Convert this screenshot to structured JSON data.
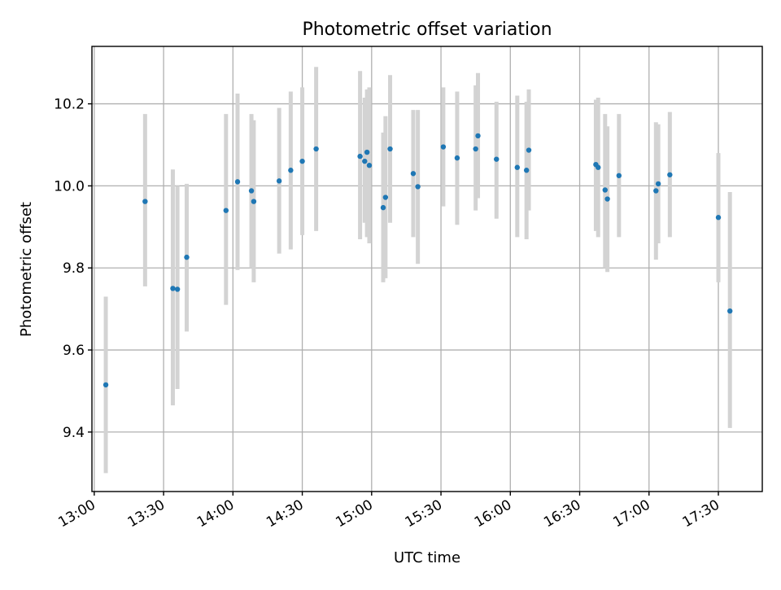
{
  "chart_data": {
    "type": "scatter",
    "title": "Photometric offset variation",
    "xlabel": "UTC time",
    "ylabel": "Photometric offset",
    "x_ticks": [
      "13:00",
      "13:30",
      "14:00",
      "14:30",
      "15:00",
      "15:30",
      "16:00",
      "16:30",
      "17:00",
      "17:30"
    ],
    "y_ticks": [
      "9.4",
      "9.6",
      "9.8",
      "10.0",
      "10.2"
    ],
    "y_tick_values": [
      9.4,
      9.6,
      9.8,
      10.0,
      10.2
    ],
    "xlim": [
      "12:59",
      "17:49"
    ],
    "ylim": [
      9.255,
      10.34
    ],
    "grid": true,
    "colors": {
      "point": "#1f77b4",
      "errorbar": "#d3d3d3"
    },
    "series": [
      {
        "points": [
          {
            "x": "13:05",
            "y": 9.515,
            "lo": 9.3,
            "hi": 9.73
          },
          {
            "x": "13:22",
            "y": 9.962,
            "lo": 9.755,
            "hi": 10.175
          },
          {
            "x": "13:34",
            "y": 9.75,
            "lo": 9.465,
            "hi": 10.04
          },
          {
            "x": "13:36",
            "y": 9.748,
            "lo": 9.505,
            "hi": 10.0
          },
          {
            "x": "13:40",
            "y": 9.826,
            "lo": 9.645,
            "hi": 10.005
          },
          {
            "x": "13:57",
            "y": 9.94,
            "lo": 9.71,
            "hi": 10.175
          },
          {
            "x": "14:02",
            "y": 10.01,
            "lo": 9.795,
            "hi": 10.225
          },
          {
            "x": "14:08",
            "y": 9.988,
            "lo": 9.8,
            "hi": 10.175
          },
          {
            "x": "14:09",
            "y": 9.962,
            "lo": 9.765,
            "hi": 10.16
          },
          {
            "x": "14:20",
            "y": 10.012,
            "lo": 9.835,
            "hi": 10.19
          },
          {
            "x": "14:25",
            "y": 10.038,
            "lo": 9.845,
            "hi": 10.23
          },
          {
            "x": "14:30",
            "y": 10.06,
            "lo": 9.88,
            "hi": 10.24
          },
          {
            "x": "14:36",
            "y": 10.09,
            "lo": 9.89,
            "hi": 10.29
          },
          {
            "x": "14:55",
            "y": 10.072,
            "lo": 9.87,
            "hi": 10.28
          },
          {
            "x": "14:57",
            "y": 10.06,
            "lo": 9.91,
            "hi": 10.215
          },
          {
            "x": "14:58",
            "y": 10.082,
            "lo": 9.875,
            "hi": 10.235
          },
          {
            "x": "14:59",
            "y": 10.05,
            "lo": 9.86,
            "hi": 10.24
          },
          {
            "x": "15:05",
            "y": 9.947,
            "lo": 9.765,
            "hi": 10.13
          },
          {
            "x": "15:06",
            "y": 9.972,
            "lo": 9.775,
            "hi": 10.17
          },
          {
            "x": "15:08",
            "y": 10.09,
            "lo": 9.91,
            "hi": 10.27
          },
          {
            "x": "15:18",
            "y": 10.03,
            "lo": 9.875,
            "hi": 10.185
          },
          {
            "x": "15:20",
            "y": 9.998,
            "lo": 9.81,
            "hi": 10.185
          },
          {
            "x": "15:31",
            "y": 10.095,
            "lo": 9.95,
            "hi": 10.24
          },
          {
            "x": "15:37",
            "y": 10.068,
            "lo": 9.905,
            "hi": 10.23
          },
          {
            "x": "15:45",
            "y": 10.09,
            "lo": 9.94,
            "hi": 10.245
          },
          {
            "x": "15:46",
            "y": 10.122,
            "lo": 9.97,
            "hi": 10.275
          },
          {
            "x": "15:54",
            "y": 10.065,
            "lo": 9.92,
            "hi": 10.205
          },
          {
            "x": "16:03",
            "y": 10.045,
            "lo": 9.875,
            "hi": 10.22
          },
          {
            "x": "16:07",
            "y": 10.038,
            "lo": 9.87,
            "hi": 10.205
          },
          {
            "x": "16:08",
            "y": 10.087,
            "lo": 9.94,
            "hi": 10.235
          },
          {
            "x": "16:37",
            "y": 10.052,
            "lo": 9.89,
            "hi": 10.21
          },
          {
            "x": "16:38",
            "y": 10.045,
            "lo": 9.875,
            "hi": 10.215
          },
          {
            "x": "16:41",
            "y": 9.99,
            "lo": 9.8,
            "hi": 10.175
          },
          {
            "x": "16:42",
            "y": 9.968,
            "lo": 9.79,
            "hi": 10.145
          },
          {
            "x": "16:47",
            "y": 10.025,
            "lo": 9.875,
            "hi": 10.175
          },
          {
            "x": "17:03",
            "y": 9.988,
            "lo": 9.82,
            "hi": 10.155
          },
          {
            "x": "17:04",
            "y": 10.005,
            "lo": 9.86,
            "hi": 10.15
          },
          {
            "x": "17:09",
            "y": 10.027,
            "lo": 9.875,
            "hi": 10.18
          },
          {
            "x": "17:30",
            "y": 9.923,
            "lo": 9.765,
            "hi": 10.08
          },
          {
            "x": "17:35",
            "y": 9.695,
            "lo": 9.41,
            "hi": 9.985
          }
        ]
      }
    ]
  }
}
